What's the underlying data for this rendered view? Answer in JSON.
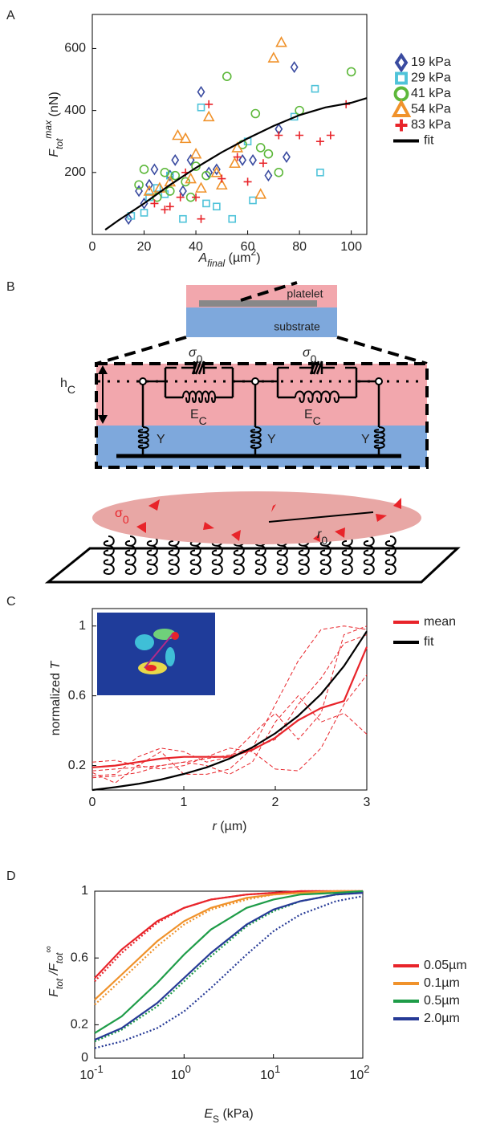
{
  "panels": [
    "A",
    "B",
    "C",
    "D"
  ],
  "diagram": {
    "platelet": "platelet",
    "substrate": "substrate",
    "thickness": {
      "text": "h",
      "sub": "C"
    },
    "yield_stress": {
      "text": "σ",
      "sub": "0"
    },
    "modulus": {
      "text": "E",
      "sub": "C"
    },
    "spring": "Y",
    "radius": {
      "text": "r",
      "sub": "0"
    }
  },
  "chart_data": [
    {
      "type": "scatter",
      "xlabel": [
        {
          "text": "A",
          "italic": true
        },
        {
          "text": "final",
          "sub": true,
          "italic": true
        },
        {
          "text": " (µm"
        },
        {
          "text": "2",
          "sup": true
        },
        {
          "text": ")"
        }
      ],
      "ylabel": [
        {
          "text": "F",
          "italic": true
        },
        {
          "text": "tot",
          "sub": true,
          "italic": true
        },
        {
          "text": "max",
          "sup": true,
          "italic": true
        },
        {
          "text": " (nN)"
        }
      ],
      "xlim": [
        0,
        106
      ],
      "ylim": [
        0,
        710
      ],
      "xticks": [
        0,
        20,
        40,
        60,
        80,
        100
      ],
      "yticks": [
        200,
        400,
        600
      ],
      "series": [
        {
          "name": "19 kPa",
          "color": "#3a4ba0",
          "marker": "diamond",
          "x": [
            14,
            18,
            22,
            24,
            30,
            32,
            38,
            42,
            45,
            48,
            58,
            62,
            68,
            72,
            75,
            78,
            20,
            35
          ],
          "values": [
            50,
            140,
            160,
            210,
            190,
            240,
            240,
            460,
            200,
            210,
            240,
            240,
            190,
            340,
            250,
            540,
            100,
            140
          ]
        },
        {
          "name": "29 kPa",
          "color": "#4fc3d9",
          "marker": "square",
          "x": [
            15,
            20,
            22,
            28,
            30,
            35,
            42,
            44,
            48,
            54,
            60,
            62,
            78,
            86,
            88,
            25
          ],
          "values": [
            60,
            70,
            120,
            130,
            190,
            50,
            410,
            100,
            90,
            50,
            300,
            110,
            380,
            470,
            200,
            150
          ]
        },
        {
          "name": "41 kPa",
          "color": "#5db83a",
          "marker": "circle",
          "x": [
            18,
            20,
            25,
            28,
            30,
            32,
            36,
            40,
            44,
            52,
            58,
            63,
            65,
            68,
            72,
            80,
            100,
            38
          ],
          "values": [
            160,
            210,
            120,
            200,
            140,
            190,
            170,
            220,
            190,
            510,
            290,
            390,
            280,
            260,
            200,
            400,
            525,
            120
          ]
        },
        {
          "name": "54 kPa",
          "color": "#f0922b",
          "marker": "triangle",
          "x": [
            22,
            26,
            30,
            33,
            36,
            38,
            40,
            45,
            48,
            50,
            56,
            65,
            70,
            73,
            55,
            42
          ],
          "values": [
            140,
            150,
            170,
            320,
            310,
            180,
            260,
            380,
            200,
            160,
            280,
            130,
            570,
            620,
            230,
            150
          ]
        },
        {
          "name": "83 kPa",
          "color": "#e8242a",
          "marker": "plus",
          "x": [
            24,
            28,
            30,
            34,
            36,
            40,
            42,
            45,
            50,
            56,
            60,
            66,
            72,
            80,
            88,
            92,
            98
          ],
          "values": [
            100,
            80,
            90,
            120,
            200,
            120,
            50,
            420,
            180,
            250,
            170,
            230,
            320,
            320,
            300,
            320,
            420
          ]
        },
        {
          "name": "fit",
          "color": "#000000",
          "marker": "line",
          "x": [
            5,
            10,
            20,
            30,
            40,
            50,
            60,
            70,
            80,
            90,
            100,
            106
          ],
          "values": [
            15,
            45,
            100,
            160,
            215,
            265,
            310,
            350,
            385,
            410,
            425,
            440
          ]
        }
      ]
    },
    {
      "type": "line",
      "xlabel": [
        {
          "text": "r",
          "italic": true
        },
        {
          "text": " (µm)"
        }
      ],
      "ylabel": [
        {
          "text": "normalized "
        },
        {
          "text": "T",
          "italic": true
        }
      ],
      "xlim": [
        0,
        3
      ],
      "ylim": [
        0.06,
        1.1
      ],
      "xticks": [
        0,
        1,
        2,
        3
      ],
      "yticks": [
        0.2,
        0.6,
        1
      ],
      "x": [
        0,
        0.25,
        0.5,
        0.75,
        1,
        1.25,
        1.5,
        1.75,
        2,
        2.25,
        2.5,
        2.75,
        3
      ],
      "series": [
        {
          "color": "#e8242a",
          "dash": "dash",
          "values": [
            0.17,
            0.18,
            0.19,
            0.2,
            0.22,
            0.24,
            0.26,
            0.3,
            0.55,
            0.8,
            0.98,
            1.0,
            0.98
          ]
        },
        {
          "color": "#e8242a",
          "dash": "dash",
          "values": [
            0.14,
            0.15,
            0.25,
            0.3,
            0.28,
            0.22,
            0.25,
            0.38,
            0.5,
            0.35,
            0.5,
            0.95,
            1.0
          ]
        },
        {
          "color": "#e8242a",
          "dash": "dash",
          "values": [
            0.13,
            0.14,
            0.16,
            0.2,
            0.22,
            0.2,
            0.15,
            0.22,
            0.45,
            0.6,
            0.45,
            0.5,
            0.38
          ]
        },
        {
          "color": "#e8242a",
          "dash": "dash",
          "values": [
            0.22,
            0.23,
            0.2,
            0.18,
            0.2,
            0.25,
            0.3,
            0.28,
            0.18,
            0.17,
            0.3,
            0.55,
            0.72
          ]
        },
        {
          "color": "#e8242a",
          "dash": "dash",
          "values": [
            0.16,
            0.1,
            0.2,
            0.28,
            0.15,
            0.15,
            0.18,
            0.3,
            0.35,
            0.55,
            0.7,
            0.9,
            0.95
          ]
        },
        {
          "name": "mean",
          "color": "#e8242a",
          "values": [
            0.19,
            0.2,
            0.22,
            0.24,
            0.25,
            0.25,
            0.25,
            0.29,
            0.36,
            0.46,
            0.53,
            0.57,
            0.88
          ]
        },
        {
          "name": "fit",
          "color": "#000000",
          "values": [
            0.06,
            0.076,
            0.095,
            0.12,
            0.152,
            0.19,
            0.24,
            0.305,
            0.385,
            0.485,
            0.61,
            0.77,
            0.97
          ]
        }
      ]
    },
    {
      "type": "line",
      "xlog": true,
      "xlabel": [
        {
          "text": "E",
          "italic": true
        },
        {
          "text": "S",
          "sub": true
        },
        {
          "text": " (kPa)"
        }
      ],
      "ylabel": [
        {
          "text": "F",
          "italic": true
        },
        {
          "text": "tot",
          "sub": true,
          "italic": true
        },
        {
          "text": " /F",
          "italic": true
        },
        {
          "text": "tot",
          "sub": true,
          "italic": true
        },
        {
          "text": "∞",
          "sup": true
        }
      ],
      "xlim": [
        0.1,
        100
      ],
      "ylim": [
        0,
        1
      ],
      "xticks": [
        {
          "value": 0.1,
          "label": "10",
          "exp": "-1"
        },
        {
          "value": 1,
          "label": "10",
          "exp": "0"
        },
        {
          "value": 10,
          "label": "10",
          "exp": "1"
        },
        {
          "value": 100,
          "label": "10",
          "exp": "2"
        }
      ],
      "yticks": [
        0,
        0.2,
        0.6,
        1
      ],
      "x": [
        0.1,
        0.2,
        0.5,
        1,
        2,
        5,
        10,
        20,
        50,
        100
      ],
      "series": [
        {
          "color": "#e8242a",
          "dash": "dot",
          "values": [
            0.46,
            0.63,
            0.81,
            0.9,
            0.95,
            0.98,
            0.99,
            1,
            1,
            1
          ]
        },
        {
          "color": "#f0922b",
          "dash": "dot",
          "values": [
            0.32,
            0.47,
            0.67,
            0.8,
            0.89,
            0.95,
            0.98,
            0.99,
            1,
            1
          ]
        },
        {
          "color": "#1e9c48",
          "dash": "dot",
          "values": [
            0.1,
            0.17,
            0.31,
            0.46,
            0.61,
            0.79,
            0.88,
            0.94,
            0.98,
            0.99
          ]
        },
        {
          "color": "#263a96",
          "dash": "dot",
          "values": [
            0.06,
            0.1,
            0.18,
            0.28,
            0.42,
            0.62,
            0.76,
            0.86,
            0.94,
            0.97
          ]
        },
        {
          "name": "0.05µm",
          "color": "#e8242a",
          "values": [
            0.48,
            0.65,
            0.82,
            0.9,
            0.95,
            0.98,
            0.99,
            1,
            1,
            1
          ]
        },
        {
          "name": "0.1µm",
          "color": "#f0922b",
          "values": [
            0.35,
            0.5,
            0.7,
            0.82,
            0.9,
            0.96,
            0.98,
            0.99,
            1,
            1
          ]
        },
        {
          "name": "0.5µm",
          "color": "#1e9c48",
          "values": [
            0.15,
            0.25,
            0.45,
            0.62,
            0.77,
            0.9,
            0.95,
            0.98,
            0.99,
            1
          ]
        },
        {
          "name": "2.0µm",
          "color": "#263a96",
          "values": [
            0.11,
            0.18,
            0.33,
            0.48,
            0.63,
            0.8,
            0.89,
            0.94,
            0.98,
            0.99
          ]
        }
      ]
    }
  ]
}
